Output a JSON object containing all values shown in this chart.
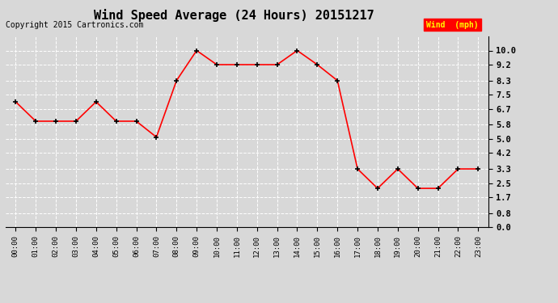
{
  "title": "Wind Speed Average (24 Hours) 20151217",
  "copyright": "Copyright 2015 Cartronics.com",
  "legend_label": "Wind  (mph)",
  "x_labels": [
    "00:00",
    "01:00",
    "02:00",
    "03:00",
    "04:00",
    "05:00",
    "06:00",
    "07:00",
    "08:00",
    "09:00",
    "10:00",
    "11:00",
    "12:00",
    "13:00",
    "14:00",
    "15:00",
    "16:00",
    "17:00",
    "18:00",
    "19:00",
    "20:00",
    "21:00",
    "22:00",
    "23:00"
  ],
  "y_values": [
    7.1,
    6.0,
    6.0,
    6.0,
    7.1,
    6.0,
    6.0,
    5.1,
    8.3,
    10.0,
    9.2,
    9.2,
    9.2,
    9.2,
    10.0,
    9.2,
    8.3,
    3.3,
    2.2,
    3.3,
    2.2,
    2.2,
    3.3,
    3.3
  ],
  "y_ticks": [
    0.0,
    0.8,
    1.7,
    2.5,
    3.3,
    4.2,
    5.0,
    5.8,
    6.7,
    7.5,
    8.3,
    9.2,
    10.0
  ],
  "line_color": "red",
  "marker_color": "black",
  "bg_color": "#d8d8d8",
  "grid_color": "#ffffff",
  "title_fontsize": 11,
  "copyright_fontsize": 7,
  "legend_bg": "red",
  "legend_text_color": "yellow",
  "legend_fontsize": 7
}
